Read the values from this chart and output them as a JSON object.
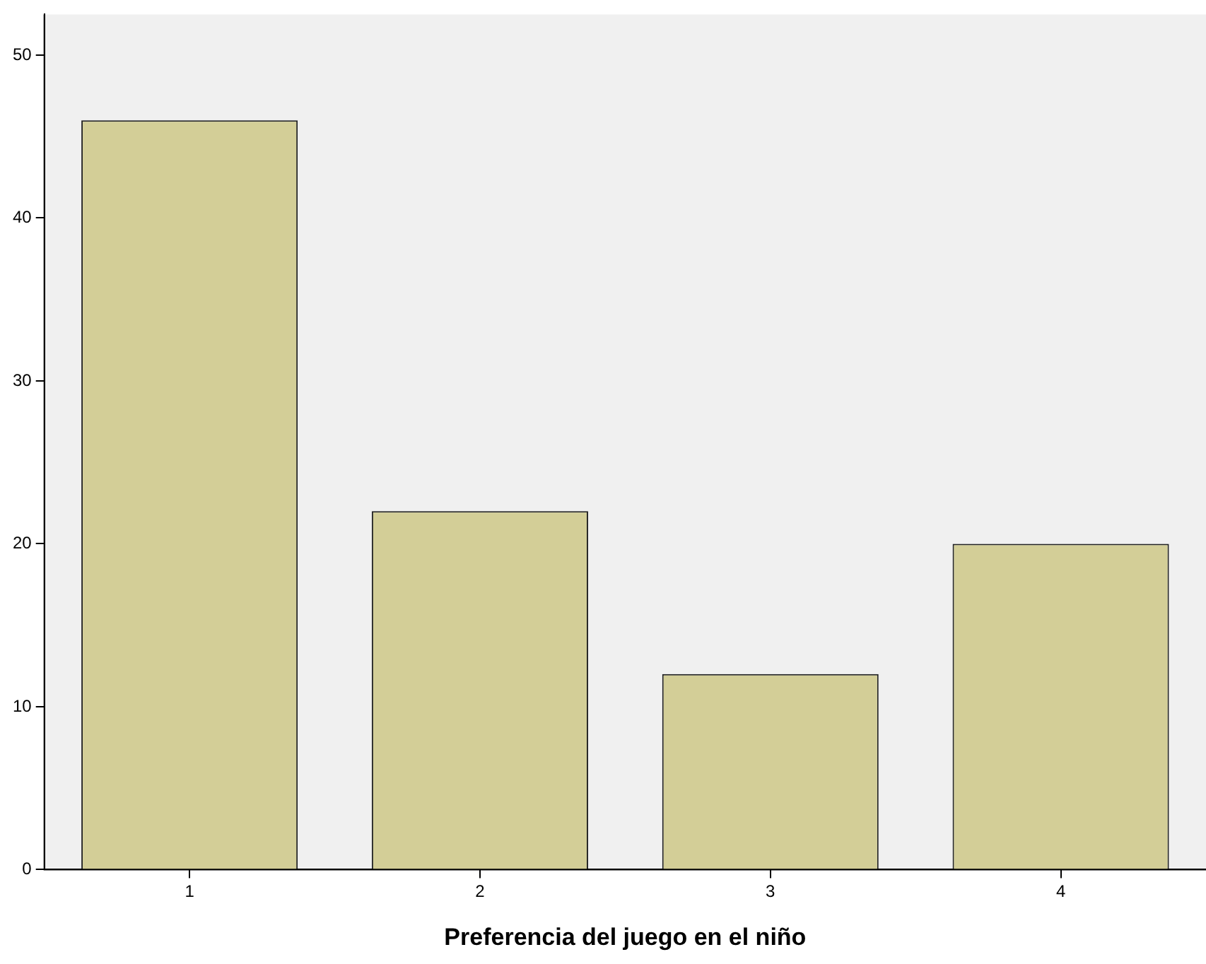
{
  "chart_data": {
    "type": "bar",
    "xlabel": "Preferencia del juego en el niño",
    "categories": [
      "1",
      "2",
      "3",
      "4"
    ],
    "values": [
      46,
      22,
      12,
      20
    ],
    "color": "#d3ce97",
    "ylim": [
      0,
      52.5
    ],
    "yticks": [
      0,
      10,
      20,
      30,
      40,
      50
    ],
    "grid": false,
    "legend": false
  }
}
